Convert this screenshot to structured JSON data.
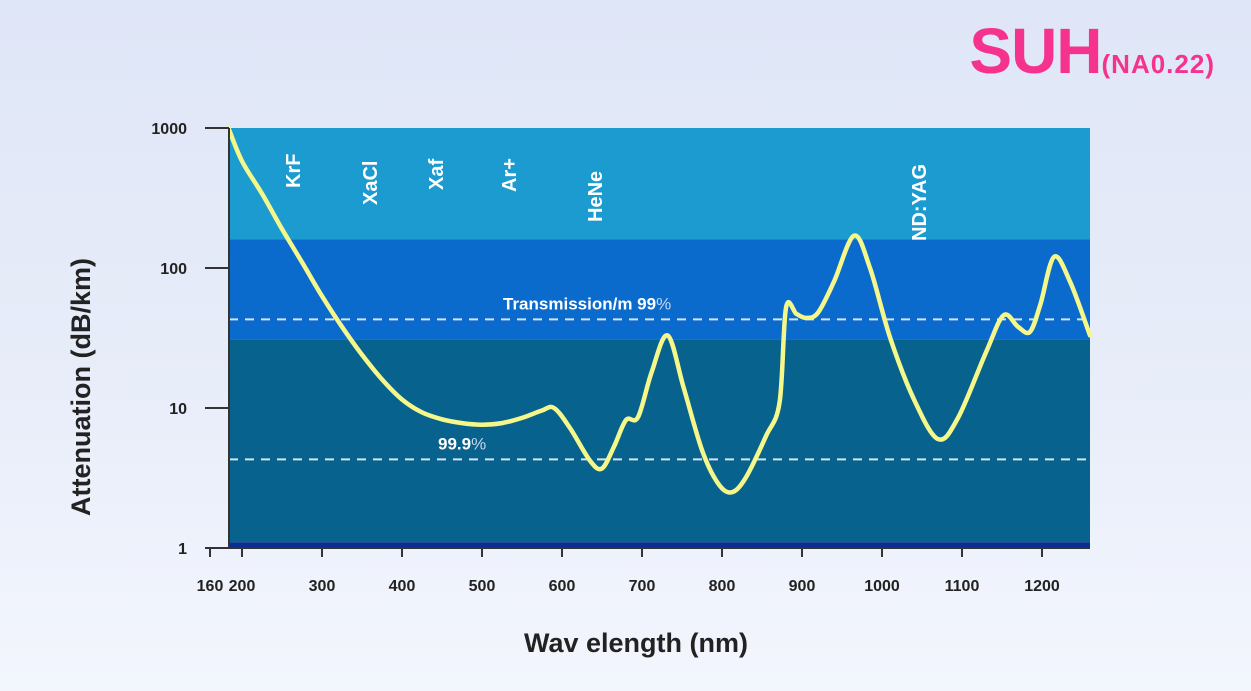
{
  "title": {
    "main": "SUH",
    "sub": "(NA0.22)"
  },
  "colors": {
    "band_top": "#1b9bcf",
    "band_mid": "#0a6bcd",
    "band_low": "#07628d",
    "band_bottom": "#0a2f92",
    "curve": "#f6f78a",
    "ref_line": "#d7e3f2",
    "title": "#f5338f"
  },
  "chart_data": {
    "type": "line",
    "xlabel": "Wav elength (nm)",
    "ylabel": "Attenuation (dB/km)",
    "y_scale": "log",
    "xlim": [
      160,
      1260
    ],
    "ylim": [
      1,
      1000
    ],
    "x_ticks": [
      160,
      200,
      300,
      400,
      500,
      600,
      700,
      800,
      900,
      1000,
      1100,
      1200
    ],
    "x_tick_labels": [
      "160",
      "200",
      "300",
      "400",
      "500",
      "600",
      "700",
      "800",
      "900",
      "1000",
      "1100",
      "1200"
    ],
    "y_ticks": [
      1,
      10,
      100,
      1000
    ],
    "y_tick_labels": [
      "1",
      "10",
      "100",
      "1000"
    ],
    "bands": [
      {
        "y_range": [
          160,
          1000
        ],
        "color": "#1b9bcf"
      },
      {
        "y_range": [
          31,
          160
        ],
        "color": "#0a6bcd"
      },
      {
        "y_range": [
          1.1,
          31
        ],
        "color": "#07628d"
      },
      {
        "y_range": [
          1,
          1.1
        ],
        "color": "#0a2f92"
      }
    ],
    "reference_lines": [
      {
        "y": 43,
        "label": "Transmission/m ",
        "value": "99",
        "unit": "%"
      },
      {
        "y": 4.3,
        "label": "",
        "value": "99.9",
        "unit": "%"
      }
    ],
    "laser_lines": [
      {
        "name": "KrF",
        "x": 248
      },
      {
        "name": "XaCl",
        "x": 308
      },
      {
        "name": "Xaf",
        "x": 351
      },
      {
        "name": "Ar+",
        "x": 488
      },
      {
        "name": "HeNe",
        "x": 633
      },
      {
        "name": "ND:YAG",
        "x": 1064
      }
    ],
    "series": [
      {
        "x": [
          183,
          200,
          225,
          250,
          275,
          300,
          325,
          350,
          375,
          400,
          425,
          450,
          475,
          500,
          525,
          550,
          575,
          590,
          610,
          635,
          650,
          665,
          680,
          695,
          712,
          732,
          752,
          775,
          795,
          812,
          830,
          855,
          872,
          880,
          893,
          905,
          920,
          940,
          965,
          985,
          1010,
          1040,
          1070,
          1095,
          1130,
          1152,
          1170,
          1185,
          1198,
          1215,
          1235,
          1260
        ],
        "y": [
          1000,
          580,
          340,
          190,
          110,
          63,
          38,
          24,
          16,
          11.5,
          9.3,
          8.3,
          7.8,
          7.6,
          7.8,
          8.5,
          9.6,
          10,
          7.2,
          4.2,
          3.7,
          5.3,
          8.2,
          8.6,
          18,
          33,
          14,
          5,
          2.9,
          2.5,
          3.2,
          6.3,
          11,
          52,
          47,
          44,
          48,
          80,
          170,
          100,
          32,
          11.5,
          6,
          8.5,
          25,
          46,
          38,
          35,
          55,
          120,
          80,
          33
        ]
      }
    ]
  }
}
